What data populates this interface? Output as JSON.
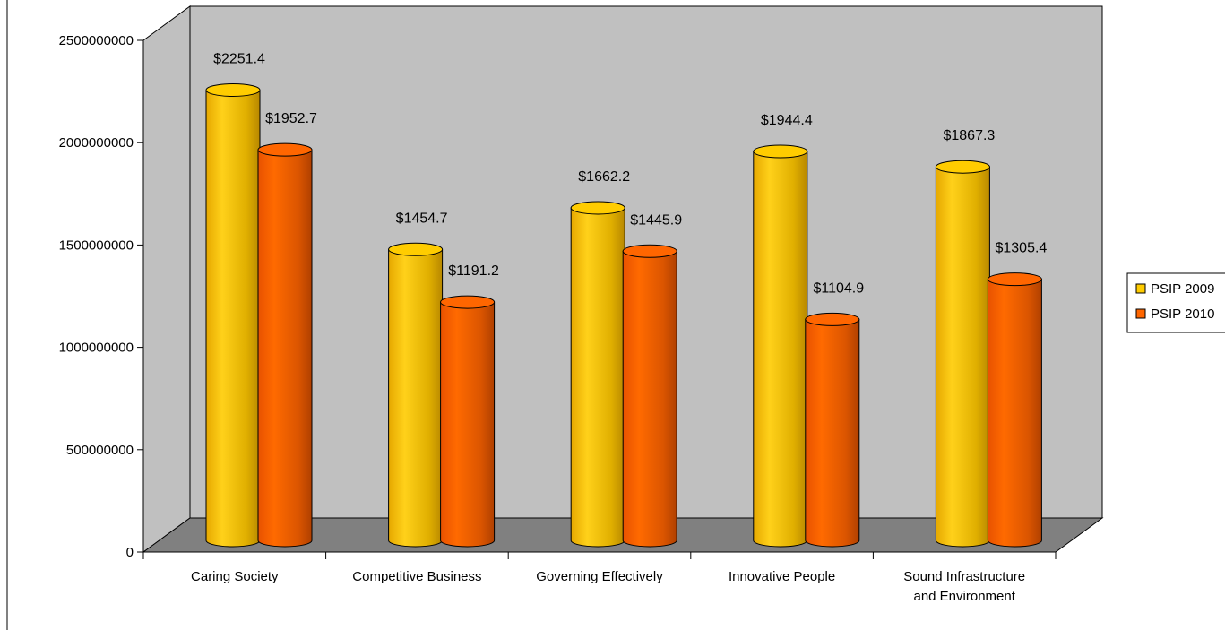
{
  "chart_data": {
    "type": "bar",
    "categories": [
      [
        "Caring Society"
      ],
      [
        "Competitive Business"
      ],
      [
        "Governing Effectively"
      ],
      [
        "Innovative People"
      ],
      [
        "Sound Infrastructure",
        "and Environment"
      ]
    ],
    "series": [
      {
        "name": "PSIP 2009",
        "values": [
          2251400000,
          1454700000,
          1662200000,
          1944400000,
          1867300000
        ],
        "labels": [
          "$2251.4",
          "$1454.7",
          "$1662.2",
          "$1944.4",
          "$1867.3"
        ],
        "color": "#FFCC00"
      },
      {
        "name": "PSIP 2010",
        "values": [
          1952700000,
          1191200000,
          1445900000,
          1104900000,
          1305400000
        ],
        "labels": [
          "$1952.7",
          "$1191.2",
          "$1445.9",
          "$1104.9",
          "$1305.4"
        ],
        "color": "#FF6600"
      }
    ],
    "yticks": [
      "0",
      "500000000",
      "1000000000",
      "1500000000",
      "2000000000",
      "2500000000"
    ],
    "ylim": [
      0,
      2500000000
    ],
    "grid": false,
    "legend": "right",
    "colors": {
      "wall": "#C0C0C0",
      "floor": "#808080"
    }
  }
}
